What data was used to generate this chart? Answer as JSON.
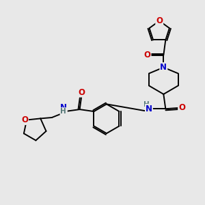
{
  "background_color": "#e8e8e8",
  "bond_color": "#000000",
  "atom_colors": {
    "O": "#cc0000",
    "N": "#0000cc",
    "H": "#557777",
    "C": "#000000"
  },
  "figsize": [
    3.0,
    3.0
  ],
  "dpi": 100
}
